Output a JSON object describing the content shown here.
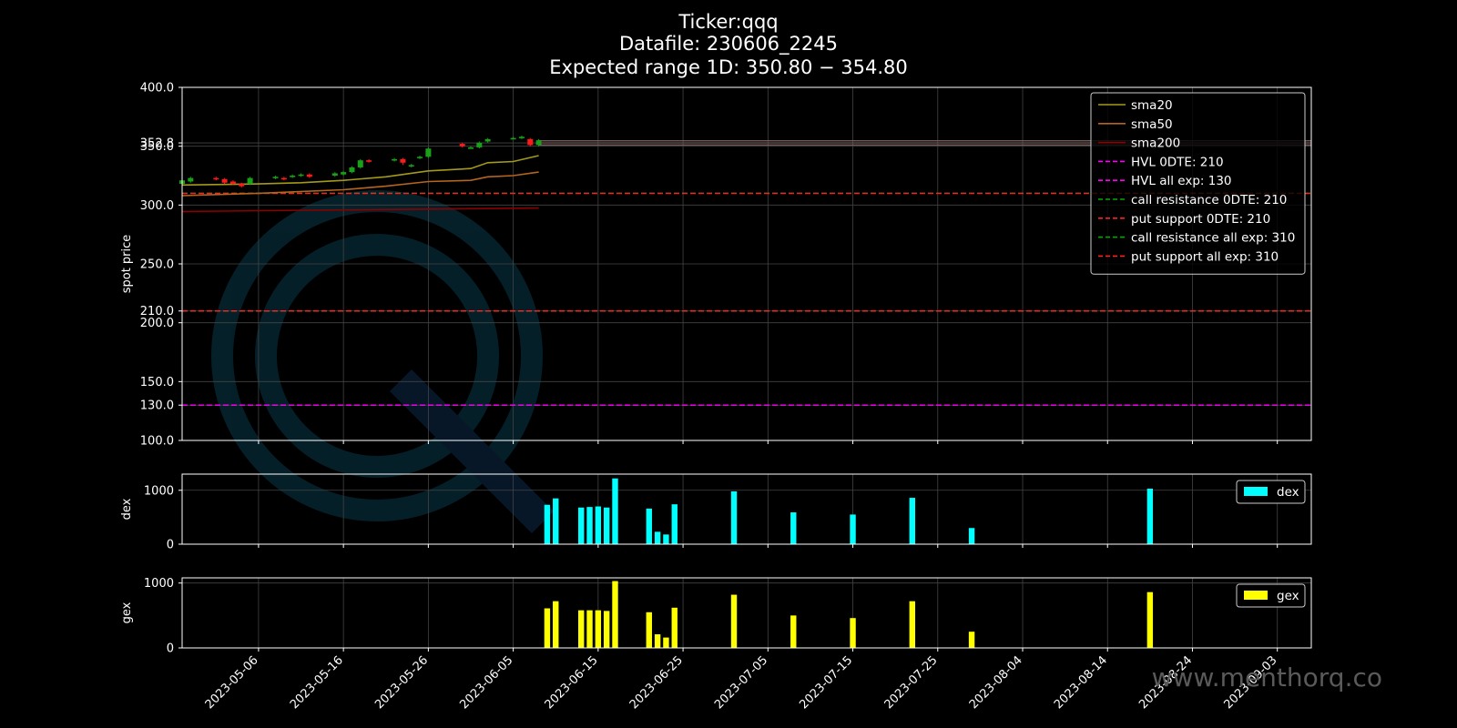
{
  "colors": {
    "background": "#000000",
    "frame": "#ffffff",
    "grid": "#444444",
    "sma20": "#a39a1a",
    "sma50": "#b5651d",
    "sma200": "#8b0000",
    "hvl": "#ff00ff",
    "call_resistance": "#00aa00",
    "put_support": "#ff2020",
    "candle_up": "#18a018",
    "candle_down": "#ff1a1a",
    "dex": "#00ffff",
    "gex": "#ffff00",
    "expected_range": "#8a6a6a"
  },
  "chart_data": [
    {
      "type": "line",
      "panel": "price",
      "title": [
        "Ticker:qqq",
        "Datafile: 230606_2245",
        "Expected range 1D: 350.80 − 354.80"
      ],
      "ylabel": "spot price",
      "ylim": [
        100,
        400
      ],
      "xlim": [
        "2023-04-27",
        "2023-09-07"
      ],
      "y_ticks": [
        "100.0",
        "130.0",
        "150.0",
        "200.0",
        "210.0",
        "250.0",
        "300.0",
        "350.0",
        "352.8",
        "400.0"
      ],
      "grid": true,
      "legend_position": "top-right",
      "expected_range": {
        "low": 350.8,
        "high": 354.8,
        "from": "2023-06-08",
        "to": "2023-09-07"
      },
      "candles": [
        {
          "d": "2023-04-27",
          "o": 318,
          "c": 321,
          "h": 322,
          "l": 316
        },
        {
          "d": "2023-04-28",
          "o": 320,
          "c": 323,
          "h": 324,
          "l": 319
        },
        {
          "d": "2023-05-01",
          "o": 323,
          "c": 322,
          "h": 324,
          "l": 321
        },
        {
          "d": "2023-05-02",
          "o": 322,
          "c": 319,
          "h": 323,
          "l": 318
        },
        {
          "d": "2023-05-03",
          "o": 320,
          "c": 318,
          "h": 321,
          "l": 317
        },
        {
          "d": "2023-05-04",
          "o": 318,
          "c": 316,
          "h": 319,
          "l": 315
        },
        {
          "d": "2023-05-05",
          "o": 318,
          "c": 323,
          "h": 324,
          "l": 317
        },
        {
          "d": "2023-05-08",
          "o": 323,
          "c": 324,
          "h": 325,
          "l": 322
        },
        {
          "d": "2023-05-09",
          "o": 323,
          "c": 322,
          "h": 324,
          "l": 321
        },
        {
          "d": "2023-05-10",
          "o": 324,
          "c": 325,
          "h": 326,
          "l": 323
        },
        {
          "d": "2023-05-11",
          "o": 325,
          "c": 326,
          "h": 327,
          "l": 324
        },
        {
          "d": "2023-05-12",
          "o": 326,
          "c": 324,
          "h": 327,
          "l": 323
        },
        {
          "d": "2023-05-15",
          "o": 325,
          "c": 327,
          "h": 328,
          "l": 324
        },
        {
          "d": "2023-05-16",
          "o": 326,
          "c": 328,
          "h": 329,
          "l": 325
        },
        {
          "d": "2023-05-17",
          "o": 328,
          "c": 332,
          "h": 333,
          "l": 327
        },
        {
          "d": "2023-05-18",
          "o": 332,
          "c": 338,
          "h": 339,
          "l": 331
        },
        {
          "d": "2023-05-19",
          "o": 338,
          "c": 337,
          "h": 339,
          "l": 336
        },
        {
          "d": "2023-05-22",
          "o": 338,
          "c": 339,
          "h": 340,
          "l": 337
        },
        {
          "d": "2023-05-23",
          "o": 339,
          "c": 336,
          "h": 340,
          "l": 334
        },
        {
          "d": "2023-05-24",
          "o": 333,
          "c": 334,
          "h": 335,
          "l": 332
        },
        {
          "d": "2023-05-25",
          "o": 340,
          "c": 341,
          "h": 342,
          "l": 339
        },
        {
          "d": "2023-05-26",
          "o": 341,
          "c": 348,
          "h": 349,
          "l": 340
        },
        {
          "d": "2023-05-30",
          "o": 352,
          "c": 350,
          "h": 353,
          "l": 349
        },
        {
          "d": "2023-05-31",
          "o": 349,
          "c": 349,
          "h": 350,
          "l": 348
        },
        {
          "d": "2023-06-01",
          "o": 349,
          "c": 353,
          "h": 354,
          "l": 348
        },
        {
          "d": "2023-06-02",
          "o": 354,
          "c": 356,
          "h": 357,
          "l": 353
        },
        {
          "d": "2023-06-05",
          "o": 357,
          "c": 357,
          "h": 358,
          "l": 356
        },
        {
          "d": "2023-06-06",
          "o": 357,
          "c": 358,
          "h": 359,
          "l": 356
        },
        {
          "d": "2023-06-07",
          "o": 356,
          "c": 351,
          "h": 357,
          "l": 350
        },
        {
          "d": "2023-06-08",
          "o": 351,
          "c": 355,
          "h": 356,
          "l": 350
        }
      ],
      "series": [
        {
          "name": "sma20",
          "style": "solid",
          "color_key": "sma20",
          "points": [
            [
              "2023-04-27",
              317
            ],
            [
              "2023-05-06",
              318
            ],
            [
              "2023-05-11",
              319
            ],
            [
              "2023-05-16",
              321
            ],
            [
              "2023-05-21",
              324
            ],
            [
              "2023-05-26",
              329
            ],
            [
              "2023-05-31",
              331
            ],
            [
              "2023-06-02",
              336
            ],
            [
              "2023-06-05",
              337
            ],
            [
              "2023-06-08",
              342
            ]
          ]
        },
        {
          "name": "sma50",
          "style": "solid",
          "color_key": "sma50",
          "points": [
            [
              "2023-04-27",
              308
            ],
            [
              "2023-05-06",
              310
            ],
            [
              "2023-05-16",
              313
            ],
            [
              "2023-05-21",
              316
            ],
            [
              "2023-05-26",
              320
            ],
            [
              "2023-05-31",
              321
            ],
            [
              "2023-06-02",
              324
            ],
            [
              "2023-06-05",
              325
            ],
            [
              "2023-06-08",
              328
            ]
          ]
        },
        {
          "name": "sma200",
          "style": "solid",
          "color_key": "sma200",
          "points": [
            [
              "2023-04-27",
              294.5
            ],
            [
              "2023-06-08",
              297.5
            ]
          ]
        },
        {
          "name": "HVL 0DTE: 210",
          "style": "dashed",
          "color_key": "hvl",
          "level": 210
        },
        {
          "name": "HVL all exp: 130",
          "style": "dashed",
          "color_key": "hvl",
          "level": 130
        },
        {
          "name": "call resistance 0DTE: 210",
          "style": "dashed",
          "color_key": "call_resistance",
          "level": 210
        },
        {
          "name": "put support 0DTE: 210",
          "style": "dashed",
          "color_key": "put_support",
          "level": 210
        },
        {
          "name": "call resistance all exp: 310",
          "style": "dashed",
          "color_key": "call_resistance",
          "level": 310
        },
        {
          "name": "put support all exp: 310",
          "style": "dashed",
          "color_key": "put_support",
          "level": 310
        }
      ]
    },
    {
      "type": "bar",
      "panel": "dex",
      "ylabel": "dex",
      "ylim": [
        0,
        1300
      ],
      "y_ticks": [
        "0",
        "1000"
      ],
      "legend": "dex",
      "legend_position": "top-right",
      "grid": true,
      "bars": [
        [
          "2023-06-09",
          730
        ],
        [
          "2023-06-10",
          850
        ],
        [
          "2023-06-13",
          680
        ],
        [
          "2023-06-14",
          690
        ],
        [
          "2023-06-15",
          700
        ],
        [
          "2023-06-16",
          680
        ],
        [
          "2023-06-17",
          1220
        ],
        [
          "2023-06-21",
          660
        ],
        [
          "2023-06-22",
          230
        ],
        [
          "2023-06-23",
          180
        ],
        [
          "2023-06-24",
          740
        ],
        [
          "2023-07-01",
          980
        ],
        [
          "2023-07-08",
          590
        ],
        [
          "2023-07-15",
          550
        ],
        [
          "2023-07-22",
          860
        ],
        [
          "2023-07-29",
          300
        ],
        [
          "2023-08-19",
          1030
        ]
      ]
    },
    {
      "type": "bar",
      "panel": "gex",
      "ylabel": "gex",
      "ylim": [
        0,
        1080
      ],
      "y_ticks": [
        "0",
        "1000"
      ],
      "legend": "gex",
      "legend_position": "top-right",
      "grid": true,
      "x_ticks": [
        "2023-05-06",
        "2023-05-16",
        "2023-05-26",
        "2023-06-05",
        "2023-06-15",
        "2023-06-25",
        "2023-07-05",
        "2023-07-15",
        "2023-07-25",
        "2023-08-04",
        "2023-08-14",
        "2023-08-24",
        "2023-09-03"
      ],
      "bars": [
        [
          "2023-06-09",
          610
        ],
        [
          "2023-06-10",
          720
        ],
        [
          "2023-06-13",
          580
        ],
        [
          "2023-06-14",
          580
        ],
        [
          "2023-06-15",
          580
        ],
        [
          "2023-06-16",
          570
        ],
        [
          "2023-06-17",
          1030
        ],
        [
          "2023-06-21",
          550
        ],
        [
          "2023-06-22",
          210
        ],
        [
          "2023-06-23",
          160
        ],
        [
          "2023-06-24",
          620
        ],
        [
          "2023-07-01",
          820
        ],
        [
          "2023-07-08",
          500
        ],
        [
          "2023-07-15",
          460
        ],
        [
          "2023-07-22",
          720
        ],
        [
          "2023-07-29",
          250
        ],
        [
          "2023-08-19",
          860
        ]
      ]
    }
  ],
  "watermark": {
    "text": "www.menthorq.co"
  }
}
